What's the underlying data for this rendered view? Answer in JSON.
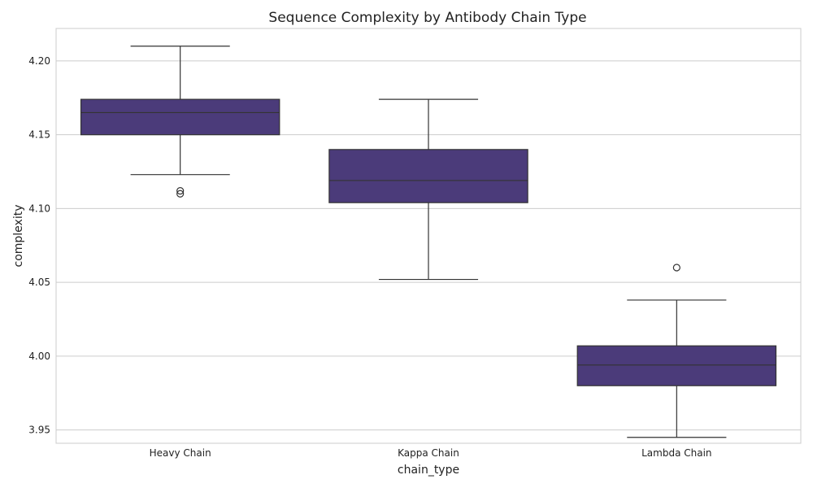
{
  "chart_data": {
    "type": "box",
    "title": "Sequence Complexity by Antibody Chain Type",
    "xlabel": "chain_type",
    "ylabel": "complexity",
    "ylim": [
      3.941,
      4.222
    ],
    "yticks": [
      3.95,
      4.0,
      4.05,
      4.1,
      4.15,
      4.2
    ],
    "ytick_labels": [
      "3.95",
      "4.00",
      "4.05",
      "4.10",
      "4.15",
      "4.20"
    ],
    "grid": "horizontal",
    "box_color": "#4b3b7a",
    "categories": [
      "Heavy Chain",
      "Kappa Chain",
      "Lambda Chain"
    ],
    "boxes": [
      {
        "category": "Heavy Chain",
        "whisker_low": 4.123,
        "q1": 4.15,
        "median": 4.165,
        "q3": 4.174,
        "whisker_high": 4.21,
        "outliers": [
          4.11,
          4.112
        ]
      },
      {
        "category": "Kappa Chain",
        "whisker_low": 4.052,
        "q1": 4.104,
        "median": 4.119,
        "q3": 4.14,
        "whisker_high": 4.174,
        "outliers": []
      },
      {
        "category": "Lambda Chain",
        "whisker_low": 3.945,
        "q1": 3.98,
        "median": 3.994,
        "q3": 4.007,
        "whisker_high": 4.038,
        "outliers": [
          4.06
        ]
      }
    ]
  }
}
